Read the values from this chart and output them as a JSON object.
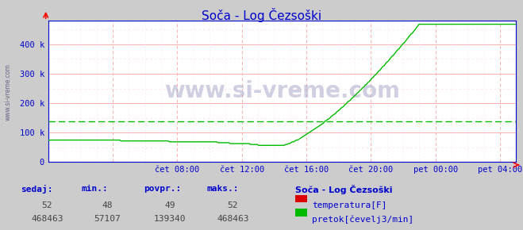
{
  "title": "Soča - Log Čezsoški",
  "bg_color": "#cccccc",
  "plot_bg_color": "#ffffff",
  "grid_color_h": "#ffb0b0",
  "grid_color_v": "#ffb0b0",
  "grid_minor_color": "#ffe0e0",
  "axis_color": "#0000cc",
  "title_color": "#0000cc",
  "watermark": "www.si-vreme.com",
  "xlabel_ticks": [
    "čet 08:00",
    "čet 12:00",
    "čet 16:00",
    "čet 20:00",
    "pet 00:00",
    "pet 04:00"
  ],
  "xlabel_hour_offsets": [
    8,
    12,
    16,
    20,
    24,
    28
  ],
  "total_hours": 29,
  "ylim": [
    0,
    480000
  ],
  "ytick_vals": [
    0,
    100000,
    200000,
    300000,
    400000
  ],
  "ytick_labels": [
    "0",
    "100 k",
    "200 k",
    "300 k",
    "400 k"
  ],
  "temp_color": "#dd0000",
  "flow_color": "#00bb00",
  "avg_line_color": "#00bb00",
  "avg_line_value": 139340,
  "temp_flat": 52,
  "sidebar_text": "www.si-vreme.com",
  "legend_title": "Soča - Log Čezsoški",
  "legend_temp_label": "temperatura[F]",
  "legend_flow_label": "pretok[čevelj3/min]",
  "footer_labels": [
    "sedaj:",
    "min.:",
    "povpr.:",
    "maks.:"
  ],
  "footer_temp": [
    52,
    48,
    49,
    52
  ],
  "footer_flow": [
    468463,
    57107,
    139340,
    468463
  ],
  "title_fontsize": 11,
  "tick_fontsize": 7.5,
  "watermark_fontsize": 20,
  "footer_label_fontsize": 8,
  "footer_val_fontsize": 8
}
